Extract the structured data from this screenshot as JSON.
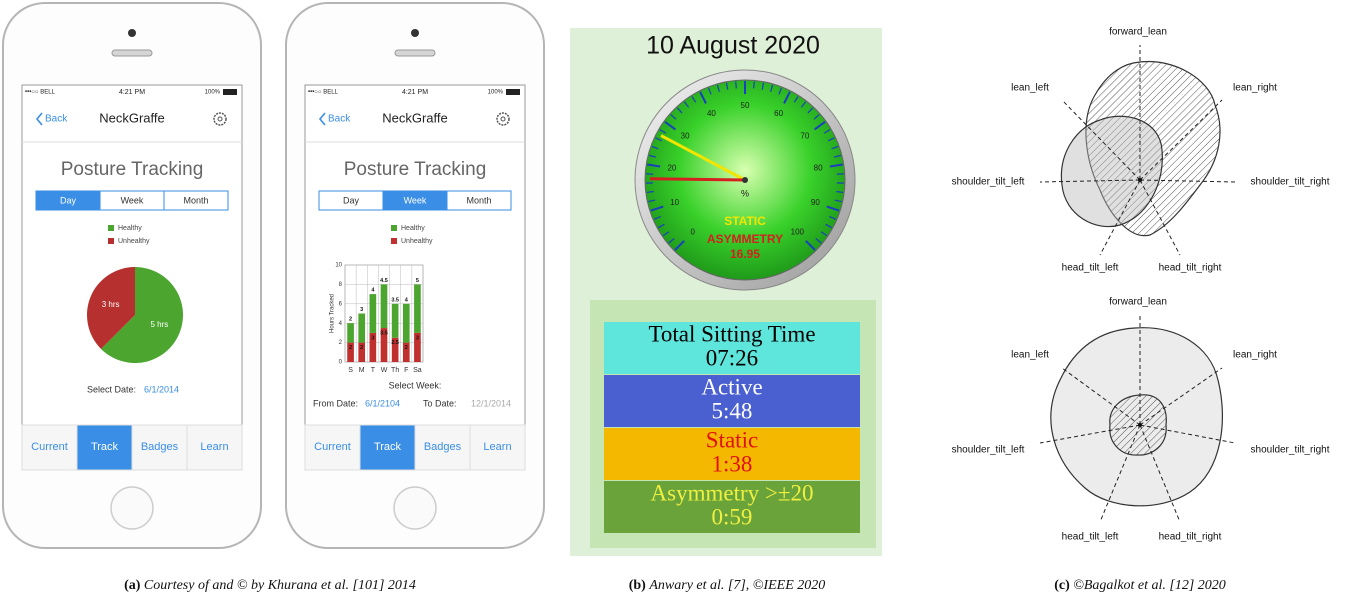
{
  "phones": [
    {
      "status": {
        "carrier": "•••○○ BELL",
        "time": "4:21 PM",
        "battery": "100%"
      },
      "nav": {
        "back": "Back",
        "title": "NeckGraffe"
      },
      "heading": "Posture Tracking",
      "tabs": [
        "Day",
        "Week",
        "Month"
      ],
      "selected_tab": 0,
      "chart": {
        "type": "pie",
        "categories": [
          "Healthy",
          "Unhealthy"
        ],
        "values": [
          5,
          3
        ],
        "value_labels": [
          "5 hrs",
          "3 hrs"
        ],
        "colors": [
          "#4ca52f",
          "#b5302e"
        ]
      },
      "select": {
        "label": "Select Date:",
        "date": "6/1/2014"
      },
      "bottom_tabs": [
        "Current",
        "Track",
        "Badges",
        "Learn"
      ],
      "selected_bottom_tab": 1
    },
    {
      "status": {
        "carrier": "•••○○ BELL",
        "time": "4:21 PM",
        "battery": "100%"
      },
      "nav": {
        "back": "Back",
        "title": "NeckGraffe"
      },
      "heading": "Posture Tracking",
      "tabs": [
        "Day",
        "Week",
        "Month"
      ],
      "selected_tab": 1,
      "chart": {
        "type": "bar",
        "stacked": true,
        "ylabel": "Hours Tracked",
        "categories": [
          "S",
          "M",
          "T",
          "W",
          "Th",
          "F",
          "Sa"
        ],
        "series": [
          {
            "name": "Healthy",
            "color": "#4ca52f",
            "values": [
              2,
              3,
              4,
              4.5,
              3.5,
              4,
              5
            ]
          },
          {
            "name": "Unhealthy",
            "color": "#c0302e",
            "values": [
              2,
              2,
              3,
              3.5,
              2.5,
              2,
              3
            ]
          }
        ],
        "ylim": [
          0,
          10
        ],
        "yticks": [
          0,
          2,
          4,
          6,
          8,
          10
        ],
        "grid": true
      },
      "select": {
        "label": "Select Week:",
        "from_label": "From Date:",
        "from": "6/1/2104",
        "to_label": "To Date:",
        "to": "12/1/2014"
      },
      "bottom_tabs": [
        "Current",
        "Track",
        "Badges",
        "Learn"
      ],
      "selected_bottom_tab": 1
    }
  ],
  "dashboard": {
    "title": "10 August 2020",
    "gauge": {
      "type": "gauge",
      "unit": "%",
      "ylim": [
        0,
        100
      ],
      "yticks": [
        0,
        10,
        20,
        30,
        40,
        50,
        60,
        70,
        80,
        90,
        100
      ],
      "needles": [
        {
          "name": "STATIC",
          "color": "#f2e600",
          "value": 27
        },
        {
          "name": "ASYMMETRY",
          "color": "#d42020",
          "value": 16.95
        }
      ]
    },
    "summary": [
      {
        "label": "Total Sitting Time",
        "value": "07:26"
      },
      {
        "label": "Active",
        "value": "5:48"
      },
      {
        "label": "Static",
        "value": "1:38"
      },
      {
        "label": "Asymmetry >±20",
        "value": "0:59"
      }
    ]
  },
  "radars": [
    {
      "axes": [
        "forward_lean",
        "lean_left",
        "lean_right",
        "shoulder_tilt_left",
        "shoulder_tilt_right",
        "head_tilt_left",
        "head_tilt_right"
      ]
    },
    {
      "axes": [
        "forward_lean",
        "lean_left",
        "lean_right",
        "shoulder_tilt_left",
        "shoulder_tilt_right",
        "head_tilt_left",
        "head_tilt_right"
      ]
    }
  ],
  "captions": [
    {
      "label": "(a)",
      "text": "Courtesy of and © by Khurana et al. [101] 2014"
    },
    {
      "label": "(b)",
      "text": "Anwary et al. [7], ©IEEE 2020"
    },
    {
      "label": "(c)",
      "text": "©Bagalkot et al. [12] 2020"
    }
  ]
}
